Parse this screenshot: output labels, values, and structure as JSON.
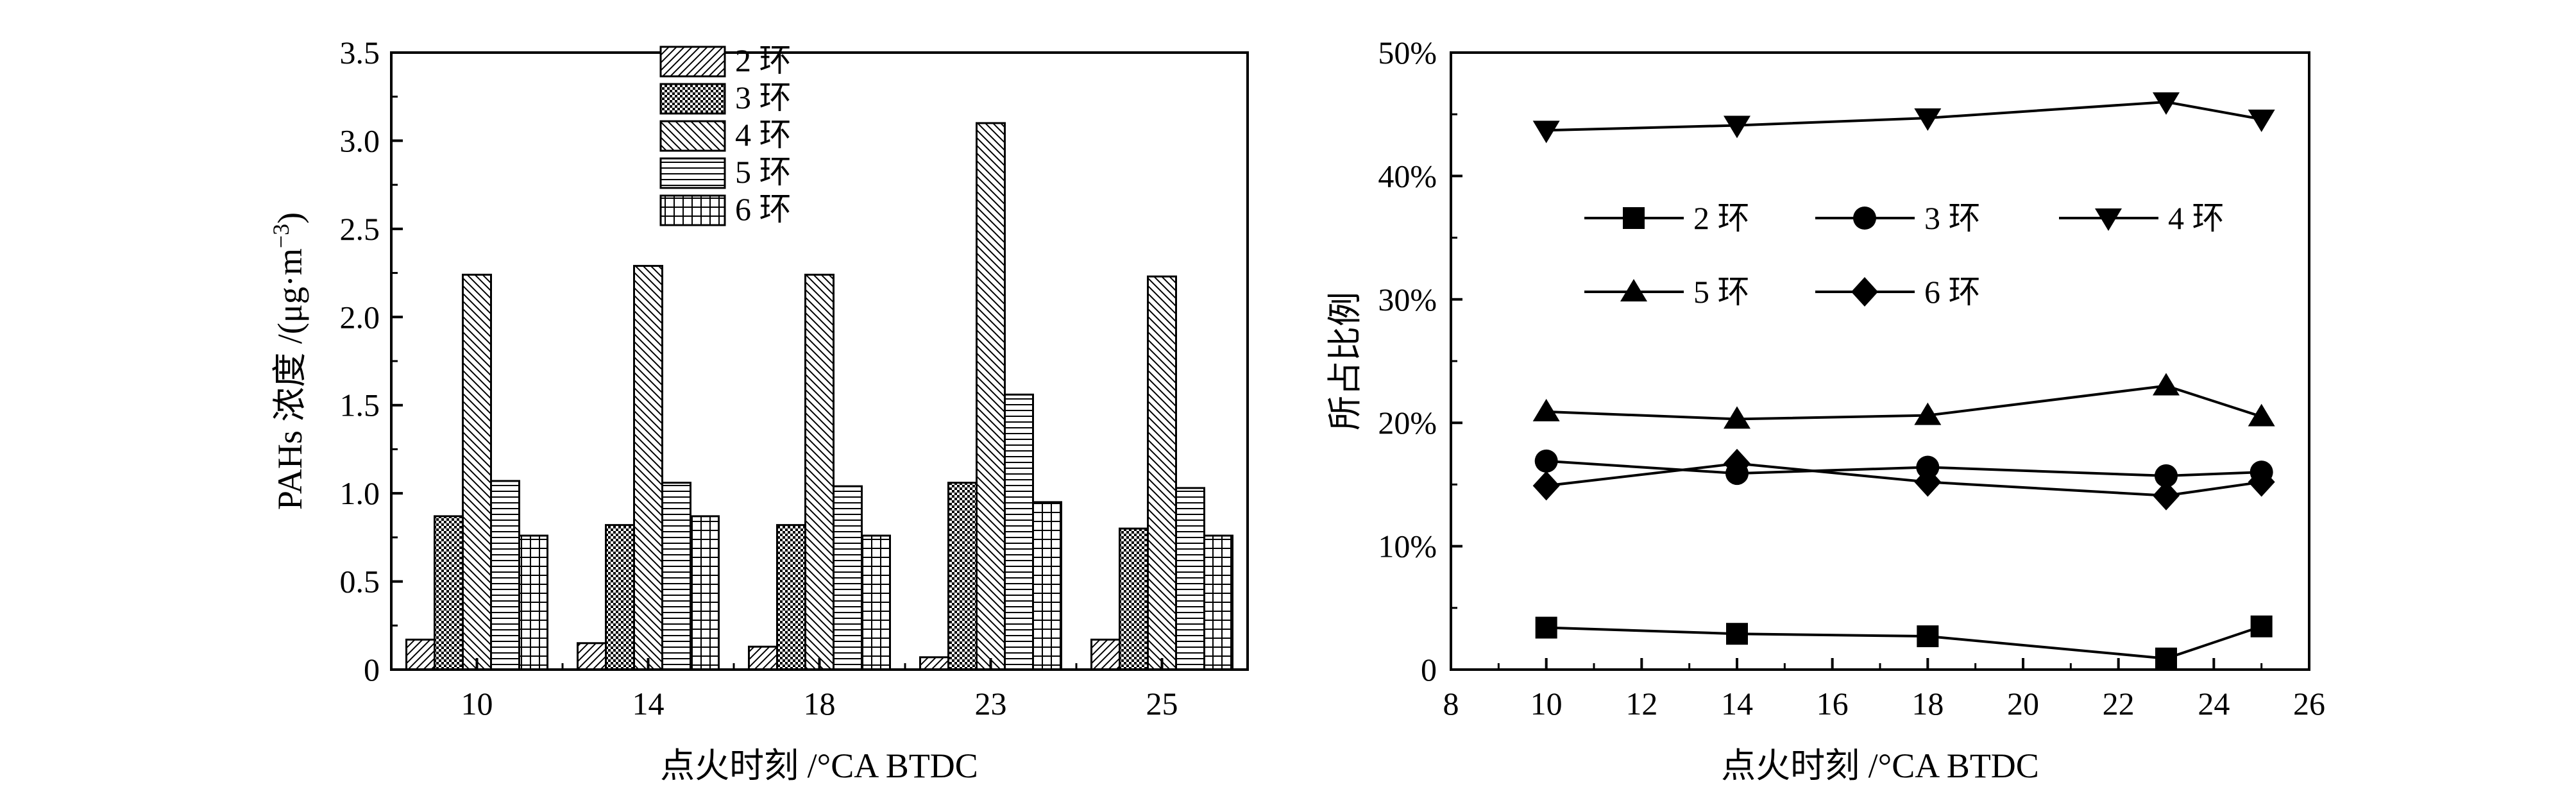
{
  "chart_data": [
    {
      "type": "bar",
      "title": "",
      "xlabel": "点火时刻 /°CA BTDC",
      "ylabel_main": "PAHs 浓度 /(μg·m",
      "ylabel_exp": "−3",
      "ylabel_close": ")",
      "ylim": [
        0,
        3.5
      ],
      "yticks": [
        "0",
        "0.5",
        "1.0",
        "1.5",
        "2.0",
        "2.5",
        "3.0",
        "3.5"
      ],
      "categories": [
        "10",
        "14",
        "18",
        "23",
        "25"
      ],
      "legend_position": "top-center",
      "series": [
        {
          "name": "2 环",
          "pattern": "diag-fwd",
          "values": [
            0.17,
            0.15,
            0.13,
            0.07,
            0.17
          ]
        },
        {
          "name": "3 环",
          "pattern": "dots",
          "values": [
            0.87,
            0.82,
            0.82,
            1.06,
            0.8
          ]
        },
        {
          "name": "4 环",
          "pattern": "diag-back",
          "values": [
            2.24,
            2.29,
            2.24,
            3.1,
            2.23
          ]
        },
        {
          "name": "5 环",
          "pattern": "hlines",
          "values": [
            1.07,
            1.06,
            1.04,
            1.56,
            1.03
          ]
        },
        {
          "name": "6 环",
          "pattern": "grid",
          "values": [
            0.76,
            0.87,
            0.76,
            0.95,
            0.76
          ]
        }
      ]
    },
    {
      "type": "line",
      "title": "",
      "xlabel": "点火时刻 /°CA BTDC",
      "ylabel": "所占比例",
      "xlim": [
        8,
        26
      ],
      "ylim": [
        0,
        50
      ],
      "xticks": [
        "8",
        "10",
        "12",
        "14",
        "16",
        "18",
        "20",
        "22",
        "24",
        "26"
      ],
      "yticks": [
        "0",
        "10%",
        "20%",
        "30%",
        "40%",
        "50%"
      ],
      "x": [
        10,
        14,
        18,
        23,
        25
      ],
      "legend_position": "upper-middle",
      "series": [
        {
          "name": "2 环",
          "marker": "square",
          "values": [
            3.4,
            2.9,
            2.7,
            0.9,
            3.5
          ]
        },
        {
          "name": "3 环",
          "marker": "circle",
          "values": [
            16.9,
            15.9,
            16.4,
            15.7,
            16.0
          ]
        },
        {
          "name": "4 环",
          "marker": "triangle-down",
          "values": [
            43.7,
            44.1,
            44.7,
            46.0,
            44.6
          ]
        },
        {
          "name": "5 环",
          "marker": "triangle-up",
          "values": [
            20.9,
            20.3,
            20.6,
            23.0,
            20.5
          ]
        },
        {
          "name": "6 环",
          "marker": "diamond",
          "values": [
            14.9,
            16.7,
            15.2,
            14.1,
            15.2
          ]
        }
      ]
    }
  ]
}
